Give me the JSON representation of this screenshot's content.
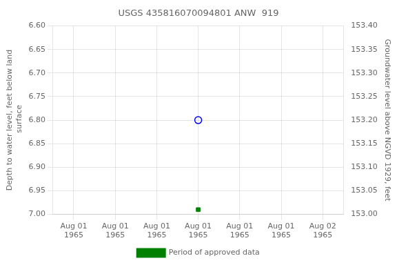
{
  "chart_data": {
    "type": "scatter",
    "title": "USGS 435816070094801 ANW  919",
    "y_label": "Depth to water level, feet below land\n surface",
    "y2_label": "Groundwater level above NGVD 1929, feet",
    "categories": [
      "Aug 01\n1965",
      "Aug 01\n1965",
      "Aug 01\n1965",
      "Aug 01\n1965",
      "Aug 01\n1965",
      "Aug 01\n1965",
      "Aug 02\n1965"
    ],
    "series": [
      {
        "color": "blue",
        "marker": "open_circle",
        "values": [
          null,
          null,
          null,
          6.8,
          null,
          null,
          null
        ]
      },
      {
        "name": "Period of approved data",
        "color": "#008000",
        "marker": "square",
        "values": [
          null,
          null,
          null,
          6.99,
          null,
          null,
          null
        ]
      }
    ],
    "ylim": [
      7.0,
      6.6
    ],
    "yticks": [
      {
        "value": 6.6,
        "label": "6.60"
      },
      {
        "value": 6.65,
        "label": "6.65"
      },
      {
        "value": 6.7,
        "label": "6.70"
      },
      {
        "value": 6.75,
        "label": "6.75"
      },
      {
        "value": 6.8,
        "label": "6.80"
      },
      {
        "value": 6.85,
        "label": "6.85"
      },
      {
        "value": 6.9,
        "label": "6.90"
      },
      {
        "value": 6.95,
        "label": "6.95"
      },
      {
        "value": 7.0,
        "label": "7.00"
      }
    ],
    "y2lim": [
      153.0,
      153.4
    ],
    "y2ticks": [
      {
        "value": 153.4,
        "label": "153.40"
      },
      {
        "value": 153.35,
        "label": "153.35"
      },
      {
        "value": 153.3,
        "label": "153.30"
      },
      {
        "value": 153.25,
        "label": "153.25"
      },
      {
        "value": 153.2,
        "label": "153.20"
      },
      {
        "value": 153.15,
        "label": "153.15"
      },
      {
        "value": 153.1,
        "label": "153.10"
      },
      {
        "value": 153.05,
        "label": "153.05"
      },
      {
        "value": 153.0,
        "label": "153.00"
      }
    ],
    "grid": true,
    "legend": "bottom"
  }
}
